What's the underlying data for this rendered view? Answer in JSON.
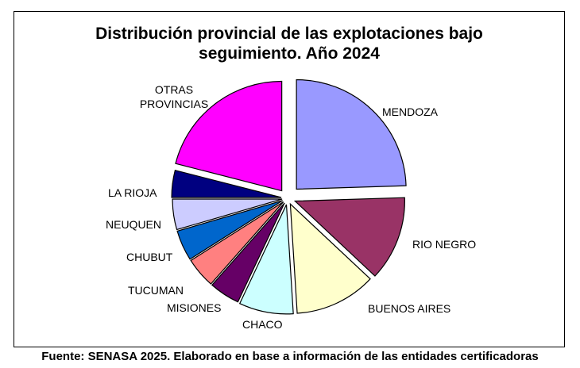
{
  "title_line1": "Distribución provincial de las explotaciones bajo",
  "title_line2": "seguimiento. Año 2024",
  "source": "Fuente: SENASA 2025. Elaborado en base a información de las entidades certificadoras",
  "chart_data": {
    "type": "pie",
    "title": "Distribución provincial de las explotaciones bajo seguimiento. Año 2024",
    "unit": "percent",
    "exploded": true,
    "legend": "none",
    "slices": [
      {
        "label": "MENDOZA",
        "label_lines": [
          "MENDOZA"
        ],
        "value": 24.5,
        "color": "#9999FF"
      },
      {
        "label": "RIO NEGRO",
        "label_lines": [
          "RIO NEGRO"
        ],
        "value": 12.5,
        "color": "#993366"
      },
      {
        "label": "BUENOS AIRES",
        "label_lines": [
          "BUENOS  AIRES"
        ],
        "value": 12.0,
        "color": "#FFFFCC"
      },
      {
        "label": "CHACO",
        "label_lines": [
          "CHACO"
        ],
        "value": 8.0,
        "color": "#CCFFFF"
      },
      {
        "label": "MISIONES",
        "label_lines": [
          "MISIONES"
        ],
        "value": 4.5,
        "color": "#660066"
      },
      {
        "label": "TUCUMAN",
        "label_lines": [
          "TUCUMAN"
        ],
        "value": 4.5,
        "color": "#FF8080"
      },
      {
        "label": "CHUBUT",
        "label_lines": [
          "CHUBUT"
        ],
        "value": 4.5,
        "color": "#0066CC"
      },
      {
        "label": "NEUQUEN",
        "label_lines": [
          "NEUQUEN"
        ],
        "value": 4.5,
        "color": "#CCCCFF"
      },
      {
        "label": "LA RIOJA",
        "label_lines": [
          "LA RIOJA"
        ],
        "value": 4.0,
        "color": "#000080"
      },
      {
        "label": "OTRAS PROVINCIAS",
        "label_lines": [
          "OTRAS",
          "PROVINCIAS"
        ],
        "value": 21.0,
        "color": "#FF00FF"
      }
    ]
  }
}
